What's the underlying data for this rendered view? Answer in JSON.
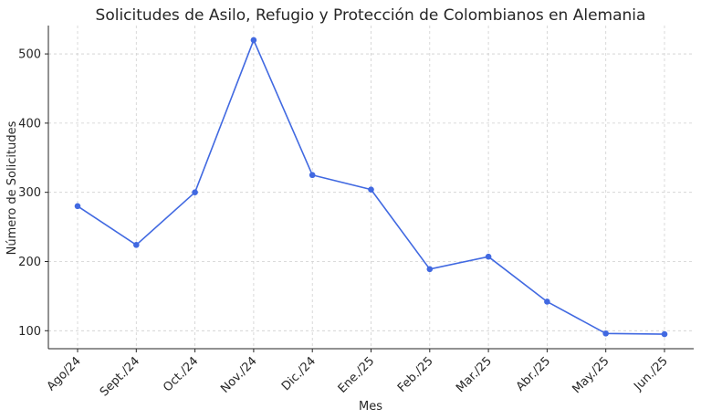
{
  "chart_data": {
    "type": "line",
    "title": "Solicitudes de Asilo, Refugio y Protección de Colombianos en Alemania",
    "xlabel": "Mes",
    "ylabel": "Número de Solicitudes",
    "categories": [
      "Ago/24",
      "Sept./24",
      "Oct./24",
      "Nov./24",
      "Dic./24",
      "Ene./25",
      "Feb./25",
      "Mar./25",
      "Abr./25",
      "May./25",
      "Jun./25"
    ],
    "series": [
      {
        "values": [
          280,
          224,
          300,
          520,
          325,
          304,
          189,
          207,
          142,
          96,
          95
        ],
        "color": "#4169e1"
      }
    ],
    "yticks": [
      100,
      200,
      300,
      400,
      500
    ],
    "ylim": [
      74,
      541
    ],
    "grid": true,
    "grid_style": "dashed",
    "marker": "circle",
    "legend": "none"
  }
}
